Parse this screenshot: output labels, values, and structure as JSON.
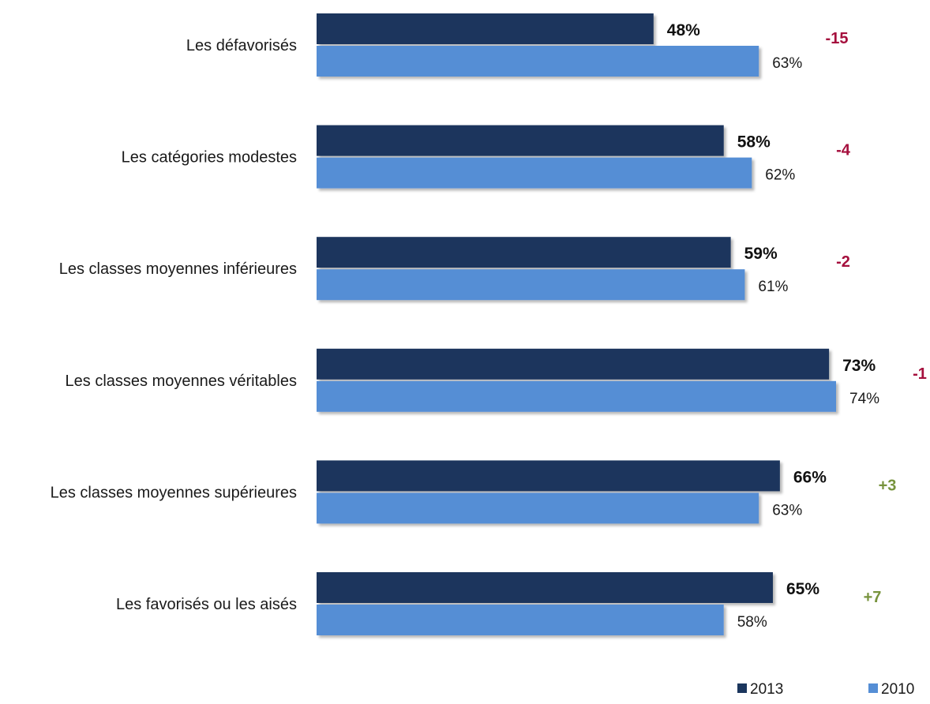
{
  "chart_data": {
    "type": "bar",
    "orientation": "horizontal",
    "categories": [
      "Les défavorisés",
      "Les catégories modestes",
      "Les classes moyennes inférieures",
      "Les classes moyennes véritables",
      "Les classes moyennes supérieures",
      "Les favorisés ou les aisés"
    ],
    "series": [
      {
        "name": "2013",
        "color": "#1b365d",
        "values": [
          48,
          58,
          59,
          73,
          66,
          65
        ],
        "labels": [
          "48%",
          "58%",
          "59%",
          "73%",
          "66%",
          "65%"
        ]
      },
      {
        "name": "2010",
        "color": "#558ed5",
        "values": [
          63,
          62,
          61,
          74,
          63,
          58
        ],
        "labels": [
          "63%",
          "62%",
          "61%",
          "74%",
          "63%",
          "58%"
        ]
      }
    ],
    "differences": [
      "-15",
      "-4",
      "-2",
      "-1",
      "+3",
      "+7"
    ],
    "difference_colors": {
      "negative": "#a50f3d",
      "positive": "#77933c"
    },
    "xlim": [
      0,
      75
    ],
    "grid": false,
    "legend": "bottom-right"
  }
}
